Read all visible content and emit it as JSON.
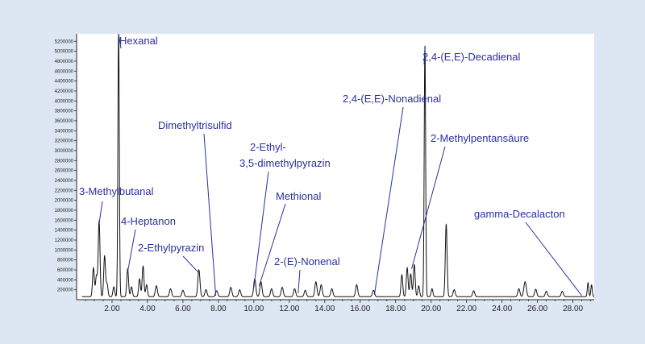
{
  "colors": {
    "background": "#dde7f3",
    "plot_background": "#ffffff",
    "trace": "#111111",
    "annotation_text": "#2b2f9e",
    "annotation_line": "#2b2f9e"
  },
  "chart_data": {
    "type": "line",
    "title": "",
    "xlabel": "",
    "ylabel": "",
    "xlim": [
      0,
      29.2
    ],
    "ylim": [
      0,
      5350000
    ],
    "grid": false,
    "legend": "none",
    "x_ticks": [
      2,
      4,
      6,
      8,
      10,
      12,
      14,
      16,
      18,
      20,
      22,
      24,
      26,
      28
    ],
    "x_tick_labels": [
      "2.00",
      "4.00",
      "6.00",
      "8.00",
      "10.00",
      "12.00",
      "14.00",
      "16.00",
      "18.00",
      "20.00",
      "22.00",
      "24.00",
      "26.00",
      "28.00"
    ],
    "y_ticks": [
      200000,
      400000,
      600000,
      800000,
      1000000,
      1200000,
      1400000,
      1600000,
      1800000,
      2000000,
      2200000,
      2400000,
      2600000,
      2800000,
      3000000,
      3200000,
      3400000,
      3600000,
      3800000,
      4000000,
      4200000,
      4400000,
      4600000,
      4800000,
      5000000,
      5200000
    ],
    "y_tick_labels": [
      "200000",
      "400000",
      "600000",
      "800000",
      "1000000",
      "1200000",
      "1400000",
      "1600000",
      "1800000",
      "2000000",
      "2200000",
      "2400000",
      "2600000",
      "2800000",
      "3000000",
      "3200000",
      "3400000",
      "3600000",
      "3800000",
      "4000000",
      "4200000",
      "4400000",
      "4600000",
      "4800000",
      "5000000",
      "5200000"
    ],
    "baseline": 60000,
    "peaks": [
      {
        "x": 0.95,
        "y": 580000,
        "w": 0.05
      },
      {
        "x": 1.12,
        "y": 420000,
        "w": 0.05
      },
      {
        "x": 1.27,
        "y": 1530000,
        "w": 0.05
      },
      {
        "x": 1.58,
        "y": 820000,
        "w": 0.05
      },
      {
        "x": 1.72,
        "y": 260000,
        "w": 0.05
      },
      {
        "x": 2.1,
        "y": 200000,
        "w": 0.05
      },
      {
        "x": 2.37,
        "y": 5350000,
        "w": 0.04
      },
      {
        "x": 2.88,
        "y": 560000,
        "w": 0.05
      },
      {
        "x": 3.1,
        "y": 200000,
        "w": 0.05
      },
      {
        "x": 3.55,
        "y": 360000,
        "w": 0.05
      },
      {
        "x": 3.75,
        "y": 620000,
        "w": 0.05
      },
      {
        "x": 3.95,
        "y": 240000,
        "w": 0.05
      },
      {
        "x": 4.5,
        "y": 220000,
        "w": 0.06
      },
      {
        "x": 5.3,
        "y": 160000,
        "w": 0.06
      },
      {
        "x": 6.0,
        "y": 130000,
        "w": 0.06
      },
      {
        "x": 6.9,
        "y": 540000,
        "w": 0.06
      },
      {
        "x": 7.3,
        "y": 140000,
        "w": 0.06
      },
      {
        "x": 7.9,
        "y": 120000,
        "w": 0.06
      },
      {
        "x": 8.7,
        "y": 190000,
        "w": 0.06
      },
      {
        "x": 9.2,
        "y": 140000,
        "w": 0.06
      },
      {
        "x": 10.05,
        "y": 360000,
        "w": 0.06
      },
      {
        "x": 10.4,
        "y": 300000,
        "w": 0.06
      },
      {
        "x": 11.0,
        "y": 160000,
        "w": 0.06
      },
      {
        "x": 11.6,
        "y": 190000,
        "w": 0.06
      },
      {
        "x": 12.3,
        "y": 160000,
        "w": 0.06
      },
      {
        "x": 12.9,
        "y": 130000,
        "w": 0.06
      },
      {
        "x": 13.5,
        "y": 300000,
        "w": 0.06
      },
      {
        "x": 13.8,
        "y": 240000,
        "w": 0.06
      },
      {
        "x": 14.4,
        "y": 160000,
        "w": 0.06
      },
      {
        "x": 15.8,
        "y": 240000,
        "w": 0.06
      },
      {
        "x": 16.75,
        "y": 130000,
        "w": 0.06
      },
      {
        "x": 18.35,
        "y": 440000,
        "w": 0.05
      },
      {
        "x": 18.65,
        "y": 580000,
        "w": 0.05
      },
      {
        "x": 18.85,
        "y": 460000,
        "w": 0.05
      },
      {
        "x": 19.05,
        "y": 650000,
        "w": 0.05
      },
      {
        "x": 19.3,
        "y": 220000,
        "w": 0.05
      },
      {
        "x": 19.65,
        "y": 5050000,
        "w": 0.04
      },
      {
        "x": 20.05,
        "y": 160000,
        "w": 0.05
      },
      {
        "x": 20.85,
        "y": 1460000,
        "w": 0.05
      },
      {
        "x": 21.3,
        "y": 140000,
        "w": 0.06
      },
      {
        "x": 22.4,
        "y": 120000,
        "w": 0.06
      },
      {
        "x": 24.95,
        "y": 160000,
        "w": 0.06
      },
      {
        "x": 25.3,
        "y": 300000,
        "w": 0.07
      },
      {
        "x": 25.9,
        "y": 150000,
        "w": 0.06
      },
      {
        "x": 26.5,
        "y": 110000,
        "w": 0.06
      },
      {
        "x": 27.4,
        "y": 110000,
        "w": 0.06
      },
      {
        "x": 28.85,
        "y": 280000,
        "w": 0.04
      },
      {
        "x": 29.05,
        "y": 240000,
        "w": 0.04
      }
    ],
    "annotations": [
      {
        "text": "Hexanal",
        "x": 2.37,
        "y": 5350000
      },
      {
        "text": "3-Methylbutanal",
        "x": 1.27,
        "y": 1530000
      },
      {
        "text": "4-Heptanon",
        "x": 2.88,
        "y": 560000
      },
      {
        "text": "2-Ethylpyrazin",
        "x": 6.9,
        "y": 540000
      },
      {
        "text": "Dimethyltrisulfid",
        "x": 7.85,
        "y": 80000
      },
      {
        "text": "2-Ethyl-\n3,5-dimethylpyrazin",
        "x": 10.0,
        "y": 250000
      },
      {
        "text": "Methional",
        "x": 10.3,
        "y": 280000
      },
      {
        "text": "2-(E)-Nonenal",
        "x": 12.5,
        "y": 130000
      },
      {
        "text": "2,4-(E,E)-Nonadienal",
        "x": 16.8,
        "y": 100000
      },
      {
        "text": "2,4-(E,E)-Decadienal",
        "x": 19.65,
        "y": 5050000
      },
      {
        "text": "2-Methylpentansäure",
        "x": 18.9,
        "y": 620000
      },
      {
        "text": "gamma-Decalacton",
        "x": 28.5,
        "y": 80000
      }
    ]
  }
}
